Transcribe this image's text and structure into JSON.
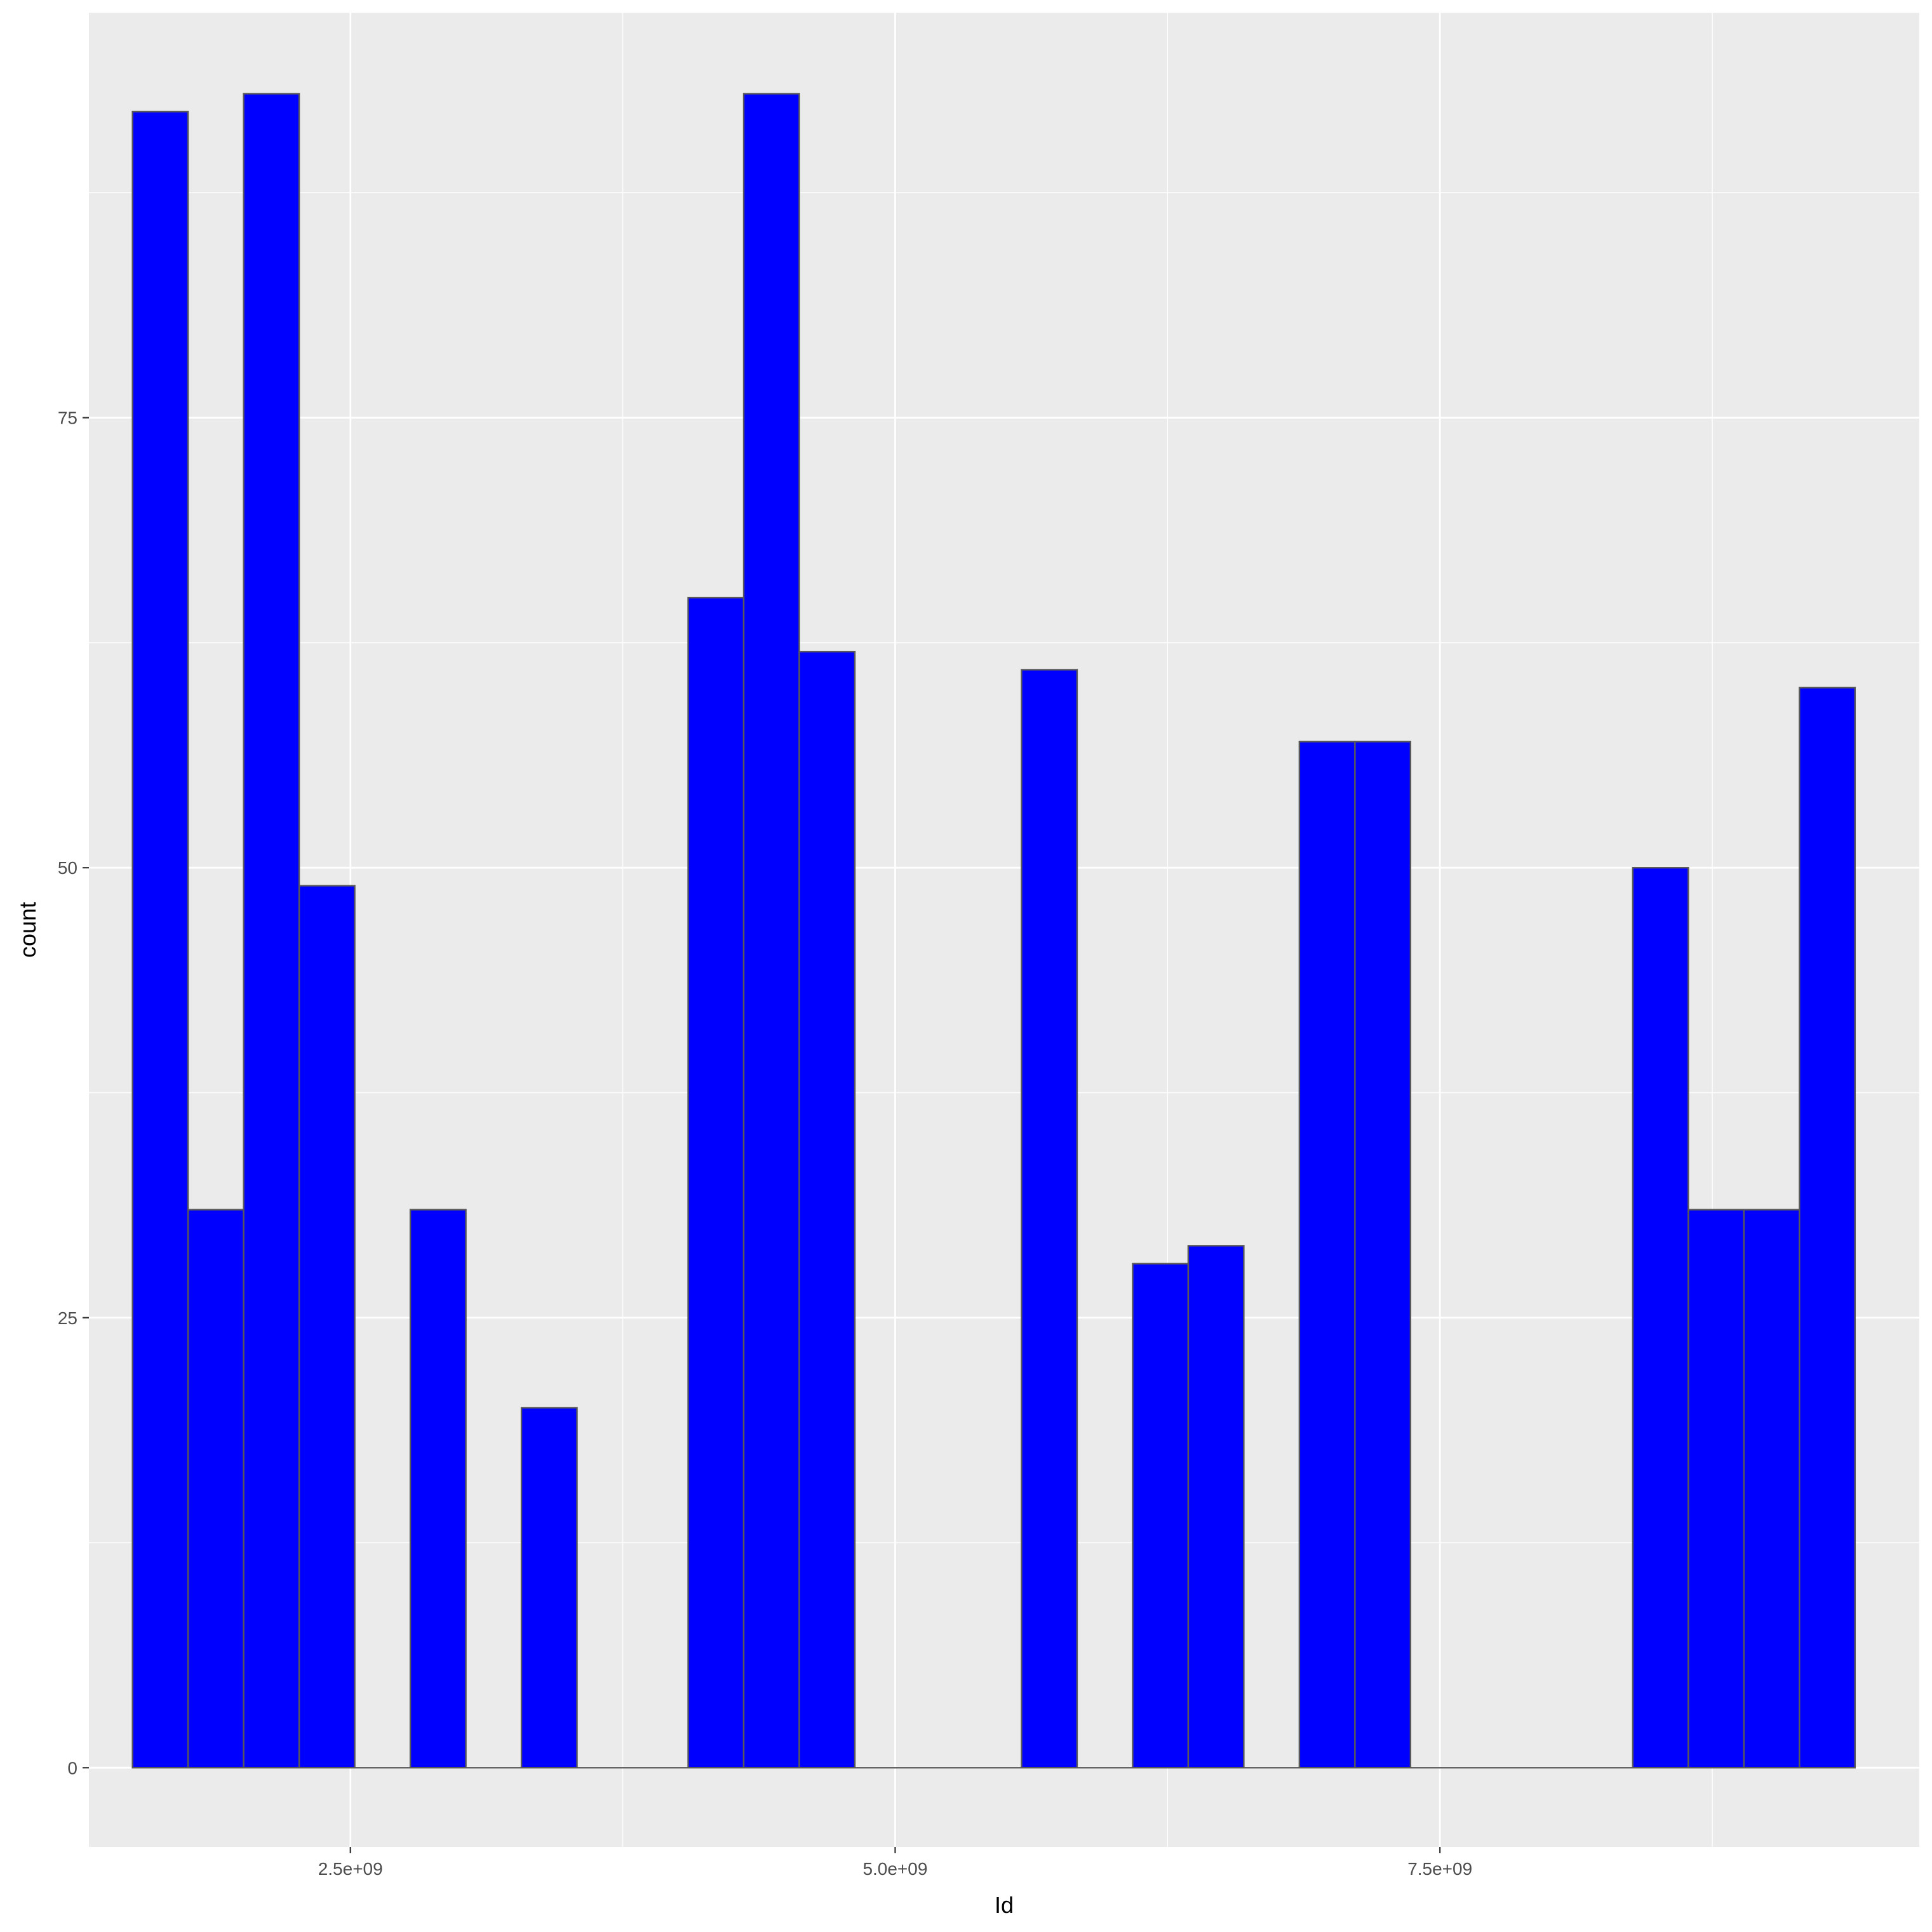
{
  "chart_data": {
    "type": "bar",
    "xlabel": "Id",
    "ylabel": "count",
    "xlim": [
      1300000000,
      9700000000
    ],
    "ylim": [
      -4.4,
      97.5
    ],
    "x_ticks": [
      {
        "value": 2500000000,
        "label": "2.5e+09"
      },
      {
        "value": 5000000000,
        "label": "5.0e+09"
      },
      {
        "value": 7500000000,
        "label": "7.5e+09"
      }
    ],
    "y_ticks": [
      {
        "value": 0,
        "label": "0"
      },
      {
        "value": 25,
        "label": "25"
      },
      {
        "value": 50,
        "label": "50"
      },
      {
        "value": 75,
        "label": "75"
      }
    ],
    "x_minor_ticks": [
      1250000000,
      3750000000,
      6250000000,
      8750000000
    ],
    "y_minor_ticks": [
      12.5,
      37.5,
      62.5,
      87.5
    ],
    "bin_start": 1500000000,
    "bin_width": 255000000,
    "counts": [
      92,
      31,
      93,
      49,
      0,
      31,
      0,
      20,
      0,
      0,
      65,
      93,
      62,
      0,
      0,
      0,
      61,
      0,
      28,
      29,
      0,
      57,
      57,
      0,
      0,
      0,
      0,
      50,
      31,
      31,
      60
    ],
    "colors": {
      "bar_fill": "#0000ff",
      "bar_outline": "#595959",
      "panel_bg": "#ebebeb",
      "grid": "#ffffff"
    },
    "grid": true,
    "legend": "none"
  }
}
